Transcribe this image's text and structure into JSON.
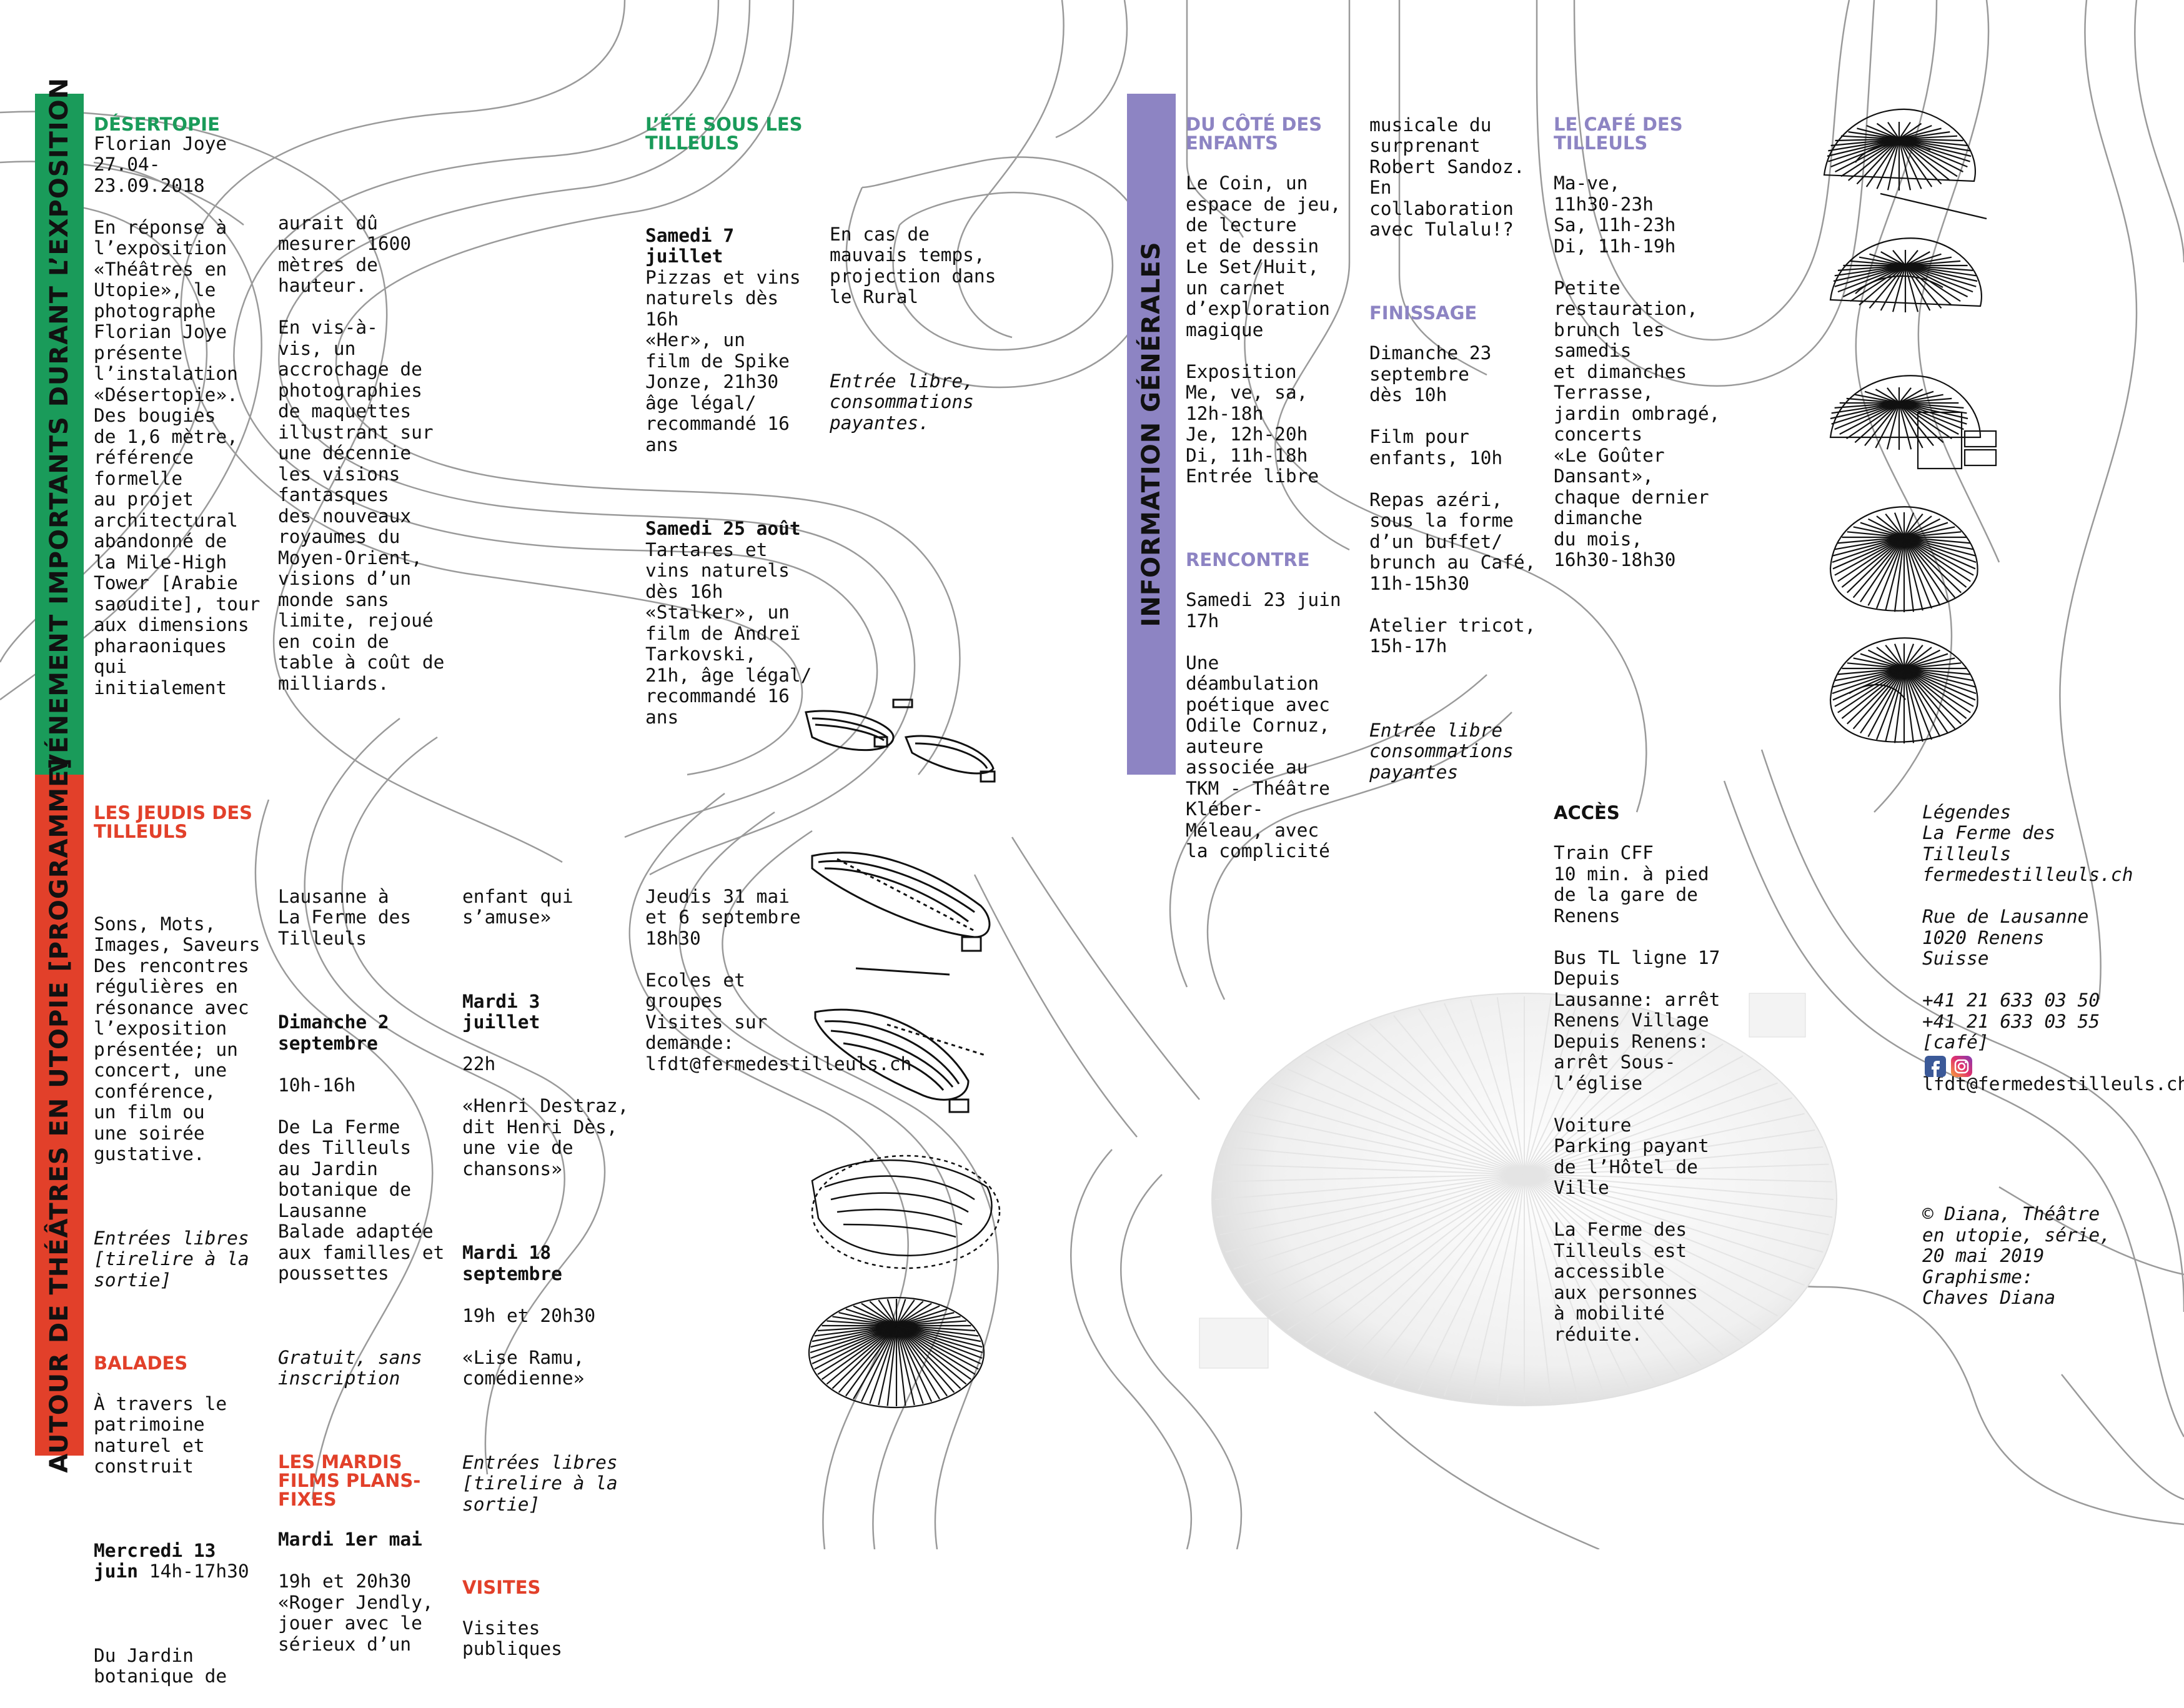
{
  "colors": {
    "green": "#1a9b5a",
    "red": "#e2402a",
    "purple": "#8d84c3"
  },
  "bands": {
    "events": "ÉVÉNEMENT IMPORTANTS DURANT L’EXPOSITION",
    "program": "AUTOUR DE THÉÂTRES EN UTOPIE [PROGRAMME]",
    "info": "INFORMATION GÉNÉRALES"
  },
  "desertopie": {
    "title": "DÉSERTOPIE",
    "col1": "Florian Joye\n27.04-\n23.09.2018\n\nEn réponse à\nl’exposition\n«Théâtres en\nUtopie», le\nphotographe\nFlorian Joye\nprésente\nl’instalation\n«Désertopie».\nDes bougies\nde 1,6 mètre,\nréférence\nformelle\nau projet\narchitectural\nabandonné de\nla Mile-High\nTower [Arabie\nsaoudite], tour\naux dimensions\npharaoniques\nqui\ninitialement",
    "col2": "aurait dû\nmesurer 1600\nmètres de\nhauteur.\n\nEn vis-à-\nvis, un\naccrochage de\nphotographies\nde maquettes\nillustrant sur\nune décennie\nles visions\nfantasques\ndes nouveaux\nroyaumes du\nMoyen-Orient,\nvisions d’un\nmonde sans\nlimite, rejoué\nen coin de\ntable à coût de\nmilliards."
  },
  "ete": {
    "title": "L’ÉTÉ SOUS LES\nTILLEULS",
    "d1": "Samedi 7\njuillet",
    "d1_text": "Pizzas et vins\nnaturels dès\n16h\n«Her», un\nfilm de Spike\nJonze, 21h30\nâge légal/\nrecommandé 16\nans",
    "d2": "Samedi 25 août",
    "d2_text": "Tartares et\nvins naturels\ndès 16h\n«Stalker», un\nfilm de Andreï\nTarkovski,\n21h, âge légal/\nrecommandé 16\nans",
    "rain": "En cas de\nmauvais temps,\nprojection dans\nle Rural",
    "free": "Entrée libre,\nconsommations\npayantes."
  },
  "jeudis": {
    "title": "LES JEUDIS DES\nTILLEULS",
    "text": "Sons, Mots,\nImages, Saveurs\nDes rencontres\nrégulières en\nrésonance avec\nl’exposition\nprésentée; un\nconcert, une\nconférence,\nun film ou\nune soirée\ngustative.",
    "free": "Entrées libres\n[tirelire à la\nsortie]",
    "balades_title": "BALADES",
    "balades_text": "À travers le\npatrimoine\nnaturel et\nconstruit",
    "merc": "Mercredi 13\njuin",
    "merc_time": " 14h-17h30",
    "merc_text": "Du Jardin\nbotanique de",
    "col2_a": "Lausanne à\nLa Ferme des\nTilleuls",
    "dim": "Dimanche 2\nseptembre",
    "dim_text": "10h-16h\n\nDe La Ferme\ndes Tilleuls\nau Jardin\nbotanique de\nLausanne\nBalade adaptée\naux familles et\npoussettes",
    "gratuit": "Gratuit, sans\ninscription",
    "mardis_title": "LES MARDIS\nFILMS PLANS-\nFIXES",
    "mardi1": "Mardi 1er mai",
    "mardi1_text": "19h et 20h30\n«Roger Jendly,\njouer avec le\nsérieux d’un",
    "col3_a": "enfant qui\ns’amuse»",
    "mardi3": "Mardi 3\njuillet",
    "mardi3_text": "22h\n\n«Henri Destraz,\ndit Henri Dès,\nune vie de\nchansons»",
    "mardi18": "Mardi 18\nseptembre",
    "mardi18_text": "19h et 20h30\n\n«Lise Ramu,\ncomédienne»",
    "free2": "Entrées libres\n[tirelire à la\nsortie]",
    "visites_title": "VISITES",
    "visites_text": "Visites\npubliques",
    "col4_a": "Jeudis 31 mai\net 6 septembre\n18h30\n\nEcoles et\ngroupes\nVisites sur\ndemande:\nlfdt@fermedestilleuls.ch"
  },
  "enfants": {
    "title": "DU CÔTÉ DES\nENFANTS",
    "text": "Le Coin, un\nespace de jeu,\nde lecture\net de dessin\nLe Set/Huit,\nun carnet\nd’exploration\nmagique\n\nExposition\nMe, ve, sa,\n12h-18h\nJe, 12h-20h\nDi, 11h-18h\nEntrée libre",
    "rencontre_title": "RENCONTRE",
    "rencontre_text": "Samedi 23 juin\n17h\n\nUne\ndéambulation\npoétique avec\nOdile Cornuz,\nauteure\nassociée au\nTKM - Théâtre\nKléber-\nMéleau, avec\nla complicité"
  },
  "col_b": {
    "text": "musicale du\nsurprenant\nRobert Sandoz.\nEn\ncollaboration\navec Tulalu!?",
    "finissage_title": "FINISSAGE",
    "finissage_text": "Dimanche 23\nseptembre\ndès 10h\n\nFilm pour\nenfants, 10h\n\nRepas azéri,\nsous la forme\nd’un buffet/\nbrunch au Café,\n11h-15h30\n\nAtelier tricot,\n15h-17h",
    "free": "Entrée libre\nconsommations\npayantes"
  },
  "cafe": {
    "title": "LE CAFÉ DES\nTILLEULS",
    "text": "Ma-ve,\n11h30-23h\nSa, 11h-23h\nDi, 11h-19h\n\nPetite\nrestauration,\nbrunch les\nsamedis\net dimanches\nTerrasse,\njardin ombragé,\nconcerts\n«Le Goûter\nDansant»,\nchaque dernier\ndimanche\ndu mois,\n16h30-18h30"
  },
  "acces": {
    "title": "ACCÈS",
    "text": "Train CFF\n10 min. à pied\nde la gare de\nRenens\n\nBus TL ligne 17\nDepuis\nLausanne: arrêt\nRenens Village\nDepuis Renens:\narrêt Sous-\nl’église\n\nVoiture\nParking payant\nde l’Hôtel de\nVille\n\nLa Ferme des\nTilleuls est\naccessible\naux personnes\nà mobilité\nréduite."
  },
  "contact": {
    "legend": "Légendes\nLa Ferme des\nTilleuls\nfermedestilleuls.ch\n\nRue de Lausanne\n1020 Renens\nSuisse\n\n+41 21 633 03 50\n+41 21 633 03 55\n[café]",
    "email": "lfdt@fermedestilleuls.ch",
    "credits": "© Diana, Théâtre\nen utopie, série,\n20 mai 2019\nGraphisme:\nChaves Diana",
    "icons": [
      "facebook-icon",
      "instagram-icon"
    ]
  }
}
